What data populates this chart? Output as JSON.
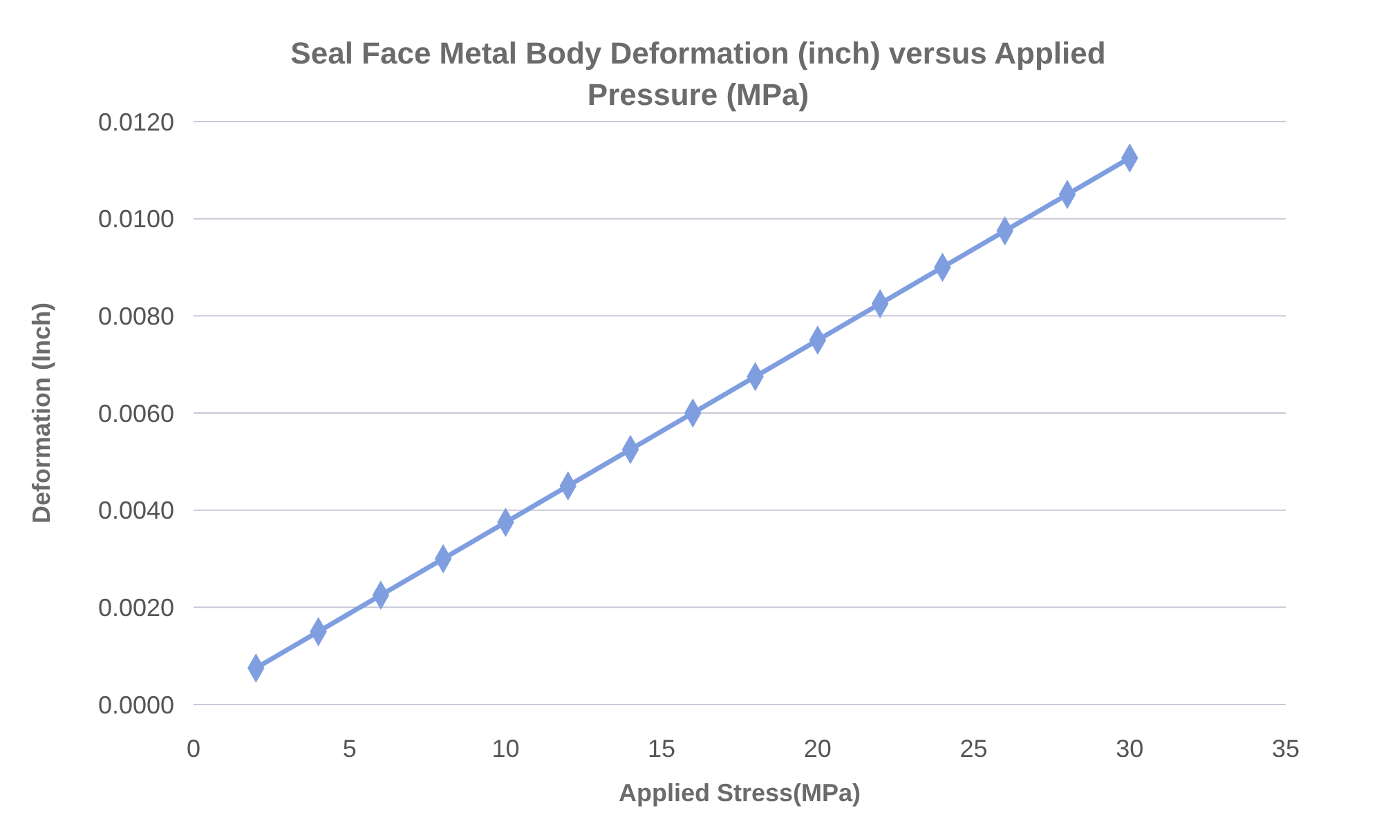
{
  "chart_data": {
    "type": "line",
    "title": "Seal Face Metal Body Deformation (inch) versus Applied Pressure (MPa)",
    "xlabel": "Applied Stress(MPa)",
    "ylabel": "Deformation (Inch)",
    "x": [
      2,
      4,
      6,
      8,
      10,
      12,
      14,
      16,
      18,
      20,
      22,
      24,
      26,
      28,
      30
    ],
    "series": [
      {
        "color": "#7f9ee0",
        "values": [
          0.00075,
          0.0015,
          0.00225,
          0.003,
          0.00375,
          0.0045,
          0.00525,
          0.006,
          0.00675,
          0.0075,
          0.00825,
          0.009,
          0.00975,
          0.0105,
          0.01125
        ]
      }
    ],
    "xlim": [
      0,
      35
    ],
    "xticks": [
      0,
      5,
      10,
      15,
      20,
      25,
      30,
      35
    ],
    "ylim": [
      0,
      0.012
    ],
    "yticks": [
      {
        "value": 0,
        "label": "0.0000"
      },
      {
        "value": 0.002,
        "label": "0.0020"
      },
      {
        "value": 0.004,
        "label": "0.0040"
      },
      {
        "value": 0.006,
        "label": "0.0060"
      },
      {
        "value": 0.008,
        "label": "0.0080"
      },
      {
        "value": 0.01,
        "label": "0.0100"
      },
      {
        "value": 0.012,
        "label": "0.0120"
      }
    ],
    "grid": "y",
    "marker": "diamond",
    "line_style": "solid"
  }
}
